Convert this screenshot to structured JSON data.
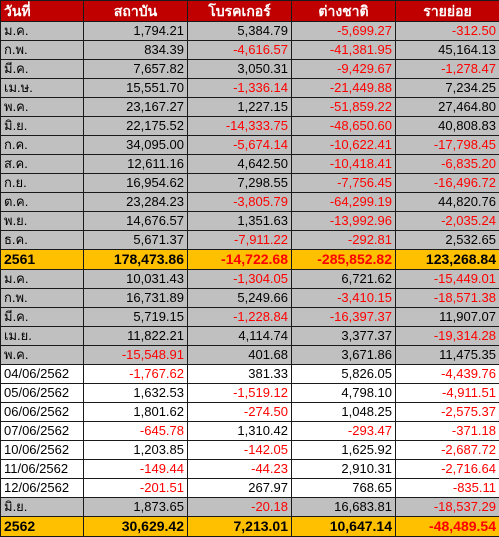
{
  "table": {
    "headers": [
      "วันที่",
      "สถาบัน",
      "โบรคเกอร์",
      "ต่างชาติ",
      "รายย่อย"
    ],
    "rows": [
      {
        "style": "grey",
        "cells": [
          "ม.ค.",
          "1,794.21",
          "5,384.79",
          "-5,699.27",
          "-312.50"
        ]
      },
      {
        "style": "grey",
        "cells": [
          "ก.พ.",
          "834.39",
          "-4,616.57",
          "-41,381.95",
          "45,164.13"
        ]
      },
      {
        "style": "grey",
        "cells": [
          "มี.ค.",
          "7,657.82",
          "3,050.31",
          "-9,429.67",
          "-1,278.47"
        ]
      },
      {
        "style": "grey",
        "cells": [
          "เม.ษ.",
          "15,551.70",
          "-1,336.14",
          "-21,449.88",
          "7,234.25"
        ]
      },
      {
        "style": "grey",
        "cells": [
          "พ.ค.",
          "23,167.27",
          "1,227.15",
          "-51,859.22",
          "27,464.80"
        ]
      },
      {
        "style": "grey",
        "cells": [
          "มิ.ย.",
          "22,175.52",
          "-14,333.75",
          "-48,650.60",
          "40,808.83"
        ]
      },
      {
        "style": "grey",
        "cells": [
          "ก.ค.",
          "34,095.00",
          "-5,674.14",
          "-10,622.41",
          "-17,798.45"
        ]
      },
      {
        "style": "grey",
        "cells": [
          "ส.ค.",
          "12,611.16",
          "4,642.50",
          "-10,418.41",
          "-6,835.20"
        ]
      },
      {
        "style": "grey",
        "cells": [
          "ก.ย.",
          "16,954.62",
          "7,298.55",
          "-7,756.45",
          "-16,496.72"
        ]
      },
      {
        "style": "grey",
        "cells": [
          "ต.ค.",
          "23,284.23",
          "-3,805.79",
          "-64,299.19",
          "44,820.76"
        ]
      },
      {
        "style": "grey",
        "cells": [
          "พ.ย.",
          "14,676.57",
          "1,351.63",
          "-13,992.96",
          "-2,035.24"
        ]
      },
      {
        "style": "grey",
        "cells": [
          "ธ.ค.",
          "5,671.37",
          "-7,911.22",
          "-292.81",
          "2,532.65"
        ]
      },
      {
        "style": "total",
        "cells": [
          "2561",
          "178,473.86",
          "-14,722.68",
          "-285,852.82",
          "123,268.84"
        ]
      },
      {
        "style": "grey",
        "cells": [
          "ม.ค.",
          "10,031.43",
          "-1,304.05",
          "6,721.62",
          "-15,449.01"
        ]
      },
      {
        "style": "grey",
        "cells": [
          "ก.พ.",
          "16,731.89",
          "5,249.66",
          "-3,410.15",
          "-18,571.38"
        ]
      },
      {
        "style": "grey",
        "cells": [
          "มี.ค.",
          "5,719.15",
          "-1,228.84",
          "-16,397.37",
          "11,907.07"
        ]
      },
      {
        "style": "grey",
        "cells": [
          "เม.ย.",
          "11,822.21",
          "4,114.74",
          "3,377.37",
          "-19,314.28"
        ]
      },
      {
        "style": "grey",
        "cells": [
          "พ.ค.",
          "-15,548.91",
          "401.68",
          "3,671.86",
          "11,475.35"
        ]
      },
      {
        "style": "white",
        "cells": [
          "04/06/2562",
          "-1,767.62",
          "381.33",
          "5,826.05",
          "-4,439.76"
        ]
      },
      {
        "style": "white",
        "cells": [
          "05/06/2562",
          "1,632.53",
          "-1,519.12",
          "4,798.10",
          "-4,911.51"
        ]
      },
      {
        "style": "white",
        "cells": [
          "06/06/2562",
          "1,801.62",
          "-274.50",
          "1,048.25",
          "-2,575.37"
        ]
      },
      {
        "style": "white",
        "cells": [
          "07/06/2562",
          "-645.78",
          "1,310.42",
          "-293.47",
          "-371.18"
        ]
      },
      {
        "style": "white",
        "cells": [
          "10/06/2562",
          "1,203.85",
          "-142.05",
          "1,625.92",
          "-2,687.72"
        ]
      },
      {
        "style": "white",
        "cells": [
          "11/06/2562",
          "-149.44",
          "-44.23",
          "2,910.31",
          "-2,716.64"
        ]
      },
      {
        "style": "white",
        "cells": [
          "12/06/2562",
          "-201.51",
          "267.97",
          "768.65",
          "-835.11"
        ]
      },
      {
        "style": "grey",
        "cells": [
          "มิ.ย.",
          "1,873.65",
          "-20.18",
          "16,683.81",
          "-18,537.29"
        ]
      },
      {
        "style": "total",
        "cells": [
          "2562",
          "30,629.42",
          "7,213.01",
          "10,647.14",
          "-48,489.54"
        ]
      }
    ]
  },
  "colors": {
    "header_bg": "#c00000",
    "header_text": "#ffffff",
    "month_row_bg": "#c0c0c0",
    "daily_row_bg": "#ffffff",
    "total_row_bg": "#ffc000",
    "negative_text": "#ff0000"
  }
}
